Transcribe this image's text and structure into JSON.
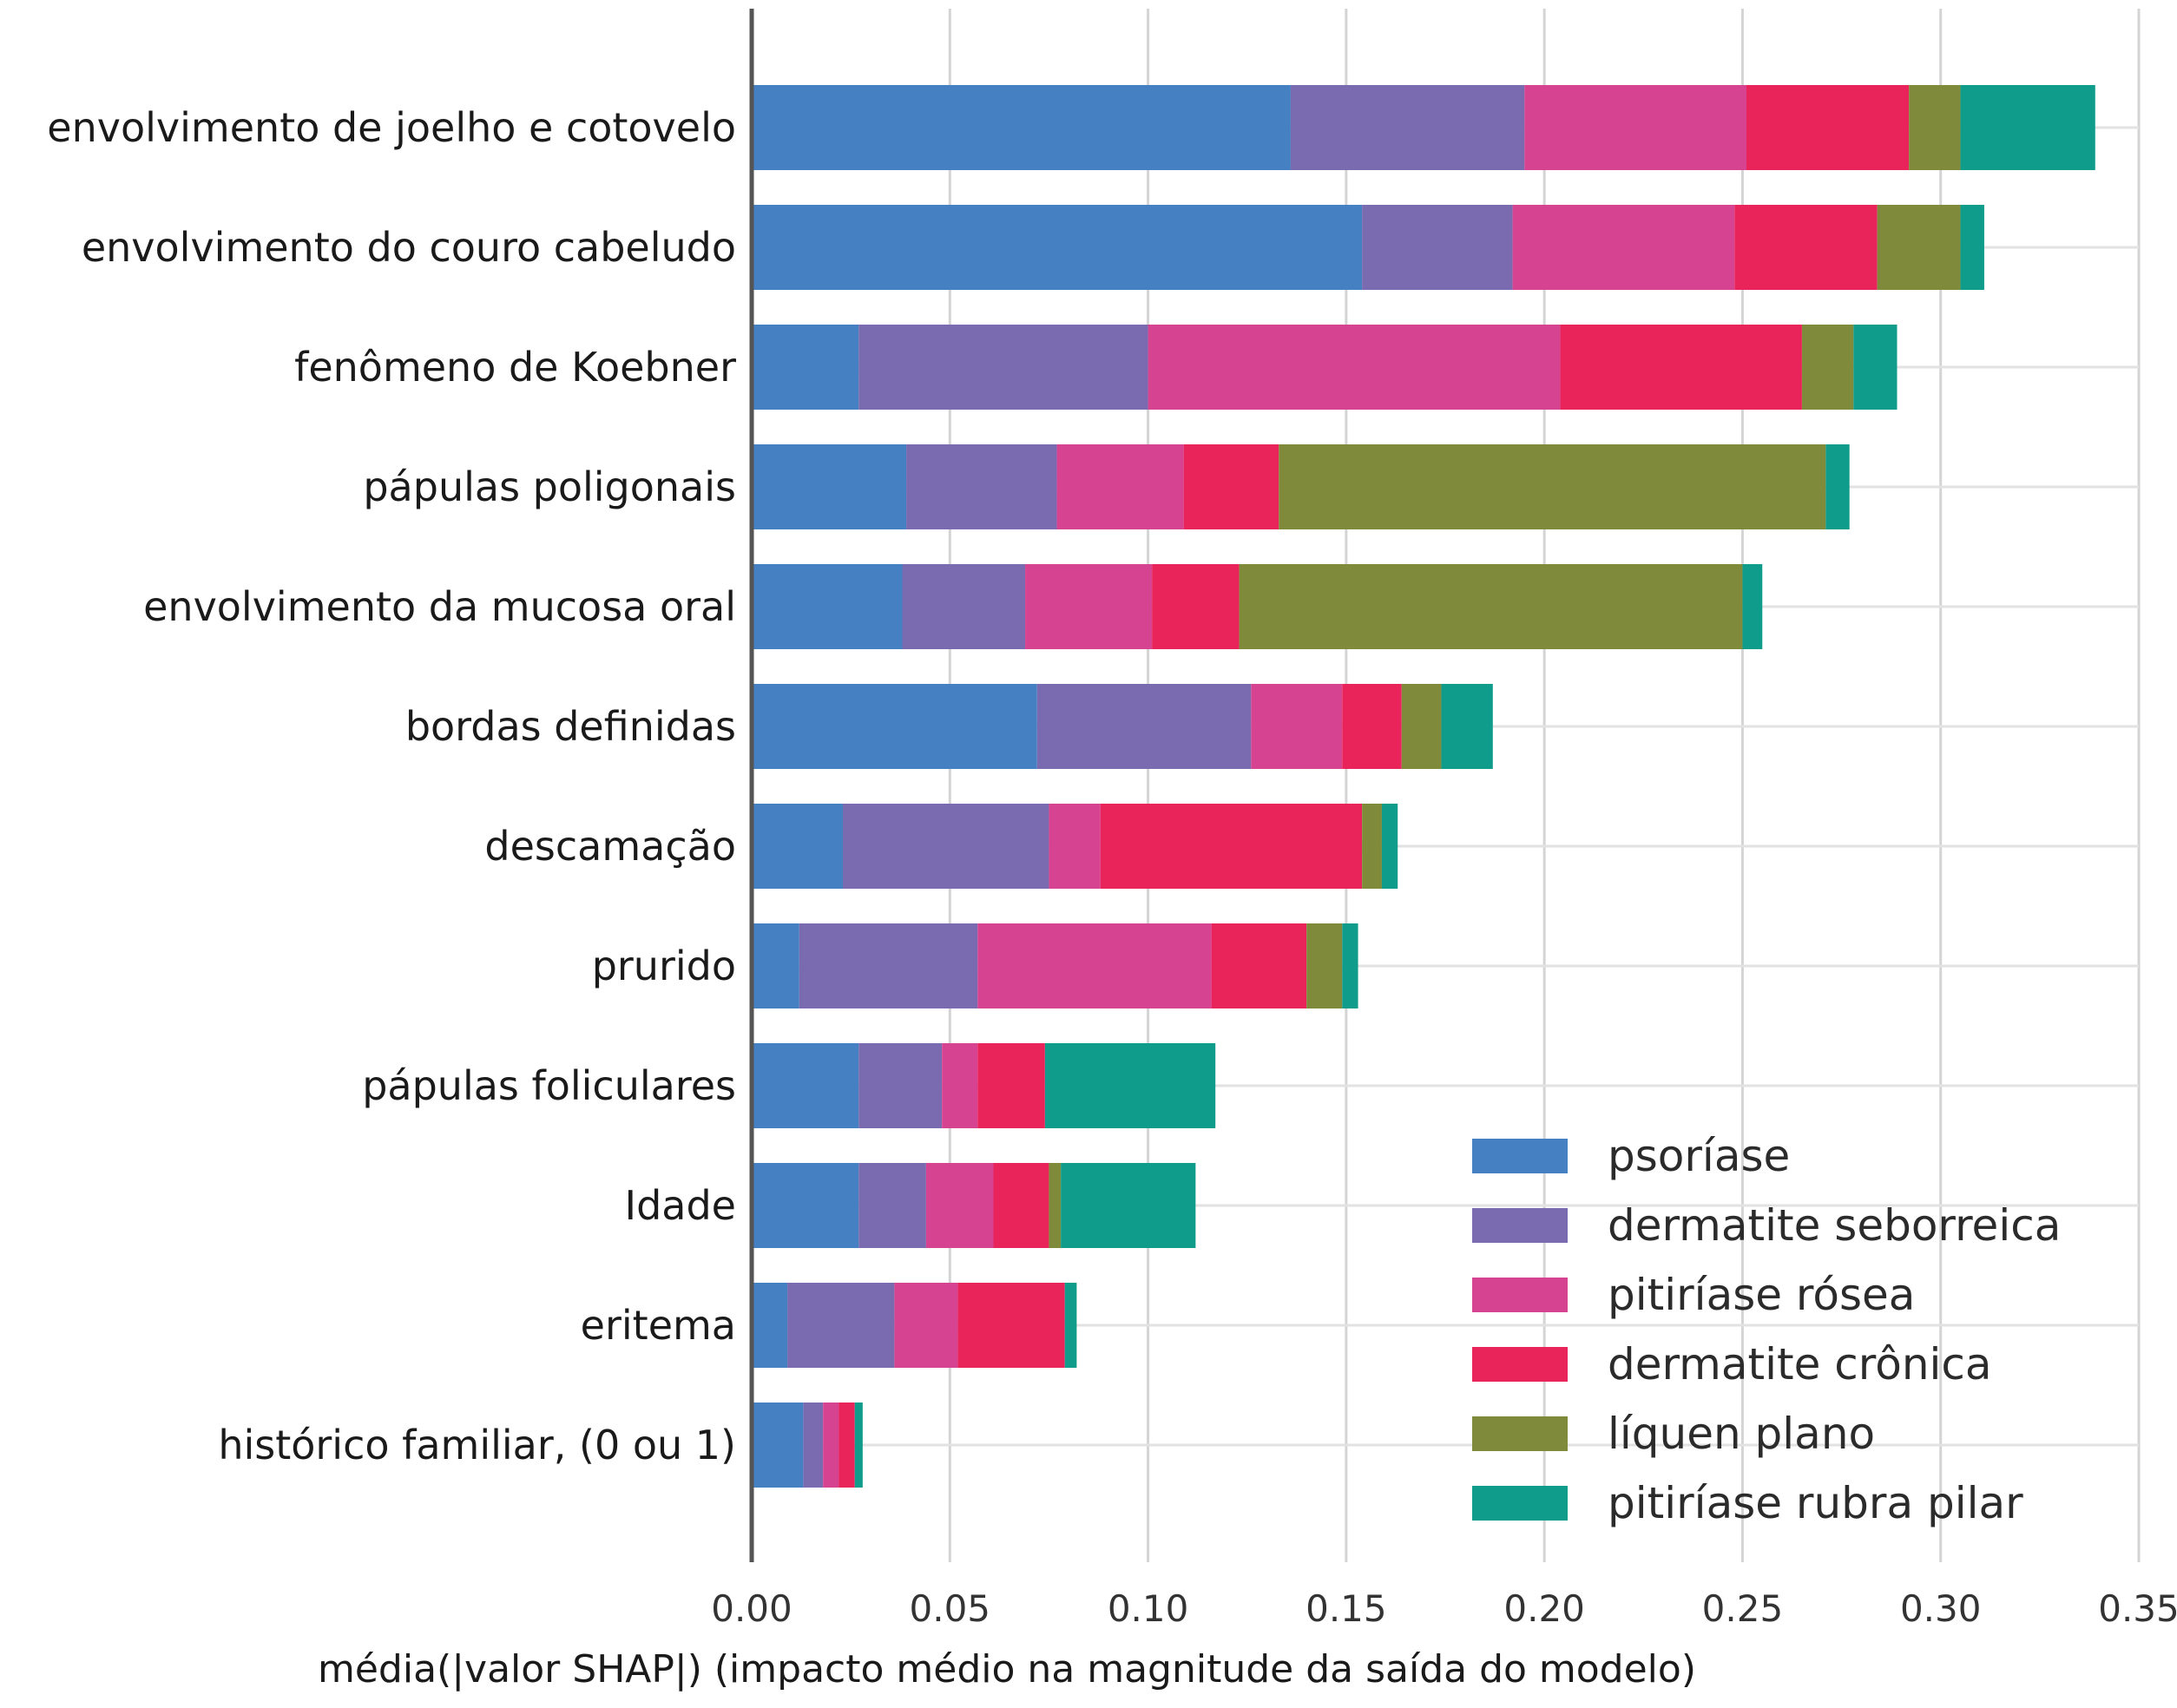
{
  "chart_data": {
    "type": "bar",
    "orientation": "horizontal",
    "stacked": true,
    "title": "",
    "xlabel": "média(|valor SHAP|) (impacto médio na magnitude da saída do modelo)",
    "ylabel": "",
    "xlim": [
      0,
      0.35
    ],
    "x_ticks": [
      "0.00",
      "0.05",
      "0.10",
      "0.15",
      "0.20",
      "0.25",
      "0.30",
      "0.35"
    ],
    "grid": "vertical",
    "legend_position": "bottom-right",
    "categories": [
      "envolvimento de joelho e cotovelo",
      "envolvimento do couro cabeludo",
      "fenômeno de Koebner",
      "pápulas poligonais",
      "envolvimento da mucosa oral",
      "bordas definidas",
      "descamação",
      "prurido",
      "pápulas foliculares",
      "Idade",
      "eritema",
      "histórico familiar, (0 ou 1)"
    ],
    "series": [
      {
        "name": "psoríase",
        "color": "#4580c2",
        "values": [
          0.136,
          0.154,
          0.027,
          0.039,
          0.038,
          0.072,
          0.023,
          0.012,
          0.027,
          0.027,
          0.009,
          0.013
        ]
      },
      {
        "name": "dermatite seborreica",
        "color": "#7a6aaf",
        "values": [
          0.059,
          0.038,
          0.073,
          0.038,
          0.031,
          0.054,
          0.052,
          0.045,
          0.021,
          0.017,
          0.027,
          0.005
        ]
      },
      {
        "name": "pitiríase rósea",
        "color": "#d64391",
        "values": [
          0.056,
          0.056,
          0.104,
          0.032,
          0.032,
          0.023,
          0.013,
          0.059,
          0.009,
          0.017,
          0.016,
          0.004
        ]
      },
      {
        "name": "dermatite crônica",
        "color": "#e8245a",
        "values": [
          0.041,
          0.036,
          0.061,
          0.024,
          0.022,
          0.015,
          0.066,
          0.024,
          0.017,
          0.014,
          0.027,
          0.004
        ]
      },
      {
        "name": "líquen plano",
        "color": "#7f8a3a",
        "values": [
          0.013,
          0.021,
          0.013,
          0.138,
          0.127,
          0.01,
          0.005,
          0.009,
          0.0,
          0.003,
          0.0,
          0.0
        ]
      },
      {
        "name": "pitiríase rubra pilar",
        "color": "#0f9c8a",
        "values": [
          0.034,
          0.006,
          0.011,
          0.006,
          0.005,
          0.013,
          0.004,
          0.004,
          0.043,
          0.034,
          0.003,
          0.002
        ]
      }
    ]
  }
}
